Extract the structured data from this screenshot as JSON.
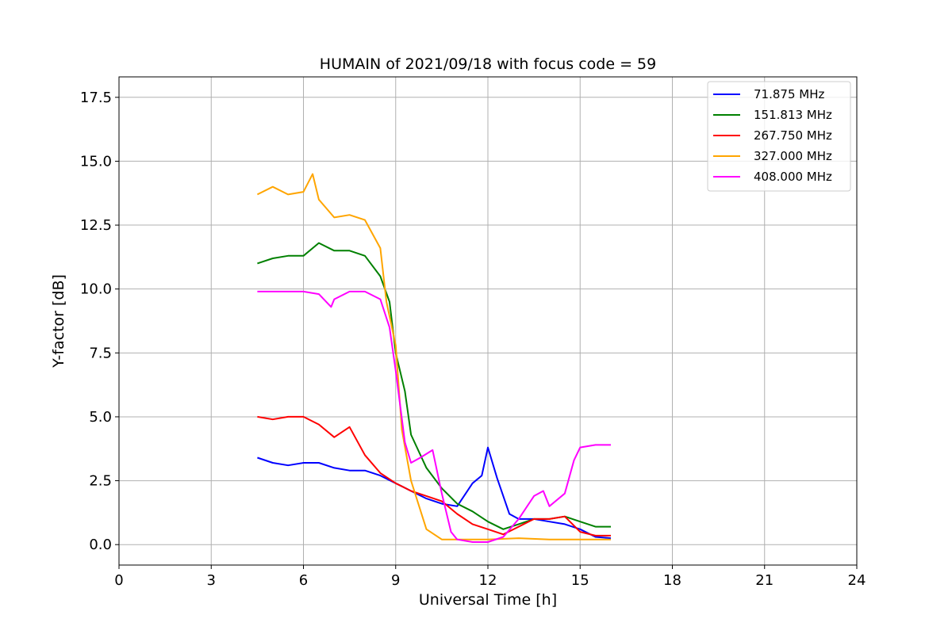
{
  "chart_data": {
    "type": "line",
    "title": "HUMAIN of 2021/09/18 with focus code = 59",
    "xlabel": "Universal Time [h]",
    "ylabel": "Y-factor [dB]",
    "xlim": [
      0,
      24
    ],
    "ylim": [
      -0.8,
      18.3
    ],
    "xticks": [
      0,
      3,
      6,
      9,
      12,
      15,
      18,
      21,
      24
    ],
    "xtick_labels": [
      "0",
      "3",
      "6",
      "9",
      "12",
      "15",
      "18",
      "21",
      "24"
    ],
    "yticks": [
      0.0,
      2.5,
      5.0,
      7.5,
      10.0,
      12.5,
      15.0,
      17.5
    ],
    "ytick_labels": [
      "0.0",
      "2.5",
      "5.0",
      "7.5",
      "10.0",
      "12.5",
      "15.0",
      "17.5"
    ],
    "grid": true,
    "legend_position": "top-right",
    "series": [
      {
        "name": "  71.875 MHz",
        "color": "#0000ff",
        "x": [
          4.5,
          5.0,
          5.5,
          6.0,
          6.5,
          7.0,
          7.5,
          8.0,
          8.5,
          9.0,
          9.5,
          10.0,
          10.5,
          11.0,
          11.5,
          11.8,
          12.0,
          12.3,
          12.7,
          13.0,
          13.5,
          14.0,
          14.5,
          15.0,
          15.5,
          16.0
        ],
        "y": [
          3.4,
          3.2,
          3.1,
          3.2,
          3.2,
          3.0,
          2.9,
          2.9,
          2.7,
          2.4,
          2.1,
          1.8,
          1.6,
          1.5,
          2.4,
          2.7,
          3.8,
          2.6,
          1.2,
          1.0,
          1.0,
          0.9,
          0.8,
          0.6,
          0.3,
          0.25
        ]
      },
      {
        "name": "151.813 MHz",
        "color": "#008000",
        "x": [
          4.5,
          5.0,
          5.5,
          6.0,
          6.5,
          7.0,
          7.5,
          8.0,
          8.5,
          8.8,
          9.0,
          9.3,
          9.5,
          10.0,
          10.5,
          11.0,
          11.5,
          12.0,
          12.5,
          13.0,
          13.5,
          14.0,
          14.5,
          15.0,
          15.5,
          16.0
        ],
        "y": [
          11.0,
          11.2,
          11.3,
          11.3,
          11.8,
          11.5,
          11.5,
          11.3,
          10.5,
          9.5,
          7.5,
          6.0,
          4.3,
          3.0,
          2.2,
          1.6,
          1.3,
          0.9,
          0.6,
          0.8,
          1.0,
          1.0,
          1.1,
          0.9,
          0.7,
          0.7
        ]
      },
      {
        "name": "267.750 MHz",
        "color": "#ff0000",
        "x": [
          4.5,
          5.0,
          5.5,
          6.0,
          6.5,
          7.0,
          7.5,
          8.0,
          8.5,
          9.0,
          9.5,
          10.0,
          10.5,
          11.0,
          11.5,
          12.0,
          12.5,
          13.0,
          13.5,
          14.0,
          14.5,
          15.0,
          15.5,
          16.0
        ],
        "y": [
          5.0,
          4.9,
          5.0,
          5.0,
          4.7,
          4.2,
          4.6,
          3.5,
          2.8,
          2.4,
          2.1,
          1.9,
          1.7,
          1.2,
          0.8,
          0.6,
          0.4,
          0.7,
          1.0,
          1.0,
          1.1,
          0.5,
          0.35,
          0.35
        ]
      },
      {
        "name": "327.000 MHz",
        "color": "#ffa500",
        "x": [
          4.5,
          5.0,
          5.5,
          6.0,
          6.3,
          6.5,
          7.0,
          7.5,
          8.0,
          8.5,
          8.7,
          9.0,
          9.2,
          9.5,
          10.0,
          10.5,
          11.0,
          12.0,
          13.0,
          14.0,
          15.0,
          16.0
        ],
        "y": [
          13.7,
          14.0,
          13.7,
          13.8,
          14.5,
          13.5,
          12.8,
          12.9,
          12.7,
          11.6,
          9.5,
          7.8,
          4.5,
          2.5,
          0.6,
          0.2,
          0.2,
          0.2,
          0.25,
          0.2,
          0.2,
          0.2
        ]
      },
      {
        "name": "408.000 MHz",
        "color": "#ff00ff",
        "x": [
          4.5,
          5.0,
          5.5,
          6.0,
          6.5,
          6.9,
          7.0,
          7.5,
          8.0,
          8.5,
          8.8,
          9.0,
          9.3,
          9.5,
          9.8,
          10.2,
          10.5,
          10.8,
          11.0,
          11.5,
          12.0,
          12.5,
          13.0,
          13.5,
          13.8,
          14.0,
          14.5,
          14.8,
          15.0,
          15.5,
          16.0
        ],
        "y": [
          9.9,
          9.9,
          9.9,
          9.9,
          9.8,
          9.3,
          9.6,
          9.9,
          9.9,
          9.6,
          8.5,
          6.8,
          4.0,
          3.2,
          3.4,
          3.7,
          2.0,
          0.5,
          0.2,
          0.1,
          0.1,
          0.3,
          1.0,
          1.9,
          2.1,
          1.5,
          2.0,
          3.3,
          3.8,
          3.9,
          3.9
        ]
      }
    ]
  }
}
